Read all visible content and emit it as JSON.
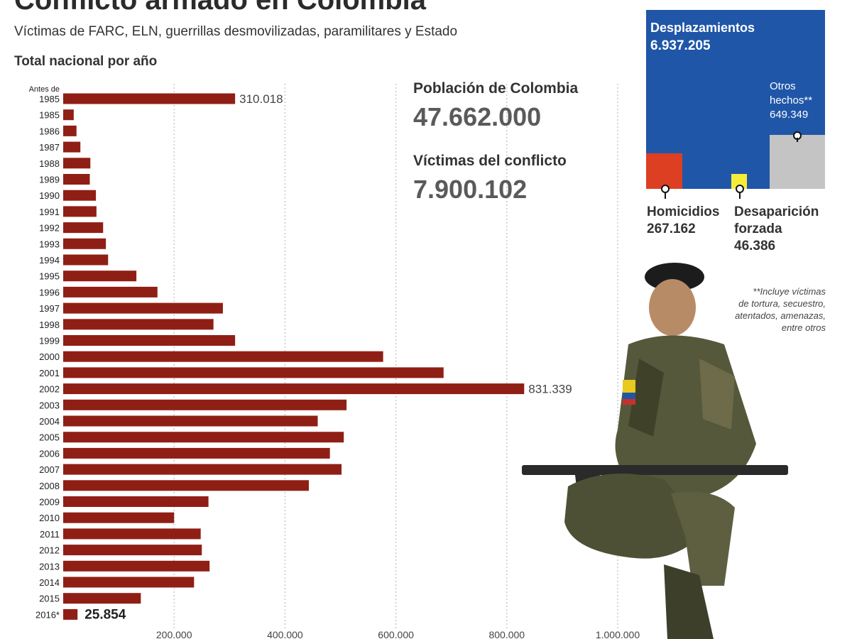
{
  "header": {
    "title": "Conflicto armado en Colombia",
    "subtitle": "Víctimas de FARC, ELN, guerrillas desmovilizadas, paramilitares y Estado",
    "section_label": "Total nacional por año"
  },
  "stats": {
    "population_label": "Población de Colombia",
    "population_value": "47.662.000",
    "victims_label": "Víctimas del conflicto",
    "victims_value": "7.900.102"
  },
  "colors": {
    "bar": "#8f1f15",
    "desplazamientos": "#1f56a8",
    "homicidios": "#dd3f23",
    "desaparicion": "#f6ec3a",
    "otros": "#c4c4c4"
  },
  "chart_data": [
    {
      "type": "bar",
      "orientation": "horizontal",
      "title": "Total nacional por año",
      "categories": [
        "Antes de 1985",
        "1985",
        "1986",
        "1987",
        "1988",
        "1989",
        "1990",
        "1991",
        "1992",
        "1993",
        "1994",
        "1995",
        "1996",
        "1997",
        "1998",
        "1999",
        "2000",
        "2001",
        "2002",
        "2003",
        "2004",
        "2005",
        "2006",
        "2007",
        "2008",
        "2009",
        "2010",
        "2011",
        "2012",
        "2013",
        "2014",
        "2015",
        "2016*"
      ],
      "values": [
        310018,
        19000,
        24000,
        31000,
        49000,
        48000,
        59000,
        60000,
        72000,
        77000,
        81000,
        132000,
        170000,
        288000,
        271000,
        310000,
        577000,
        686000,
        831339,
        511000,
        459000,
        506000,
        481000,
        502000,
        443000,
        262000,
        200000,
        248000,
        250000,
        264000,
        236000,
        140000,
        25854
      ],
      "xlim": [
        0,
        1000000
      ],
      "xticks": [
        200000,
        400000,
        600000,
        800000,
        1000000
      ],
      "xtick_labels": [
        "200.000",
        "400.000",
        "600.000",
        "800.000",
        "1.000.000"
      ],
      "ytick_labels": [
        "Antes de",
        "1985",
        "1985",
        "1986",
        "1987",
        "1988",
        "1989",
        "1990",
        "1991",
        "1992",
        "1993",
        "1994",
        "1995",
        "1996",
        "1997",
        "1998",
        "1999",
        "2000",
        "2001",
        "2002",
        "2003",
        "2004",
        "2005",
        "2006",
        "2007",
        "2008",
        "2009",
        "2010",
        "2011",
        "2012",
        "2013",
        "2014",
        "2015",
        "2016*"
      ],
      "annotations": [
        {
          "category": "Antes de 1985",
          "text": "310.018"
        },
        {
          "category": "2002",
          "text": "831.339"
        },
        {
          "category": "2016*",
          "text": "25.854"
        }
      ]
    },
    {
      "type": "treemap",
      "items": [
        {
          "name": "Desplazamientos",
          "value": 6937205,
          "label": "6.937.205"
        },
        {
          "name": "Homicidios",
          "value": 267162,
          "label": "267.162"
        },
        {
          "name": "Desaparición forzada",
          "value": 46386,
          "label": "46.386"
        },
        {
          "name": "Otros hechos**",
          "value": 649349,
          "label": "649.349"
        }
      ],
      "labels": {
        "desplazamientos": "Desplazamientos",
        "otros_line1": "Otros",
        "otros_line2": "hechos**",
        "homicidios": "Homicidios",
        "desaparicion_line1": "Desaparición",
        "desaparicion_line2": "forzada"
      },
      "footnote": [
        "**Incluye víctimas",
        "de tortura, secuestro,",
        "atentados, amenazas,",
        "entre otros"
      ]
    }
  ]
}
